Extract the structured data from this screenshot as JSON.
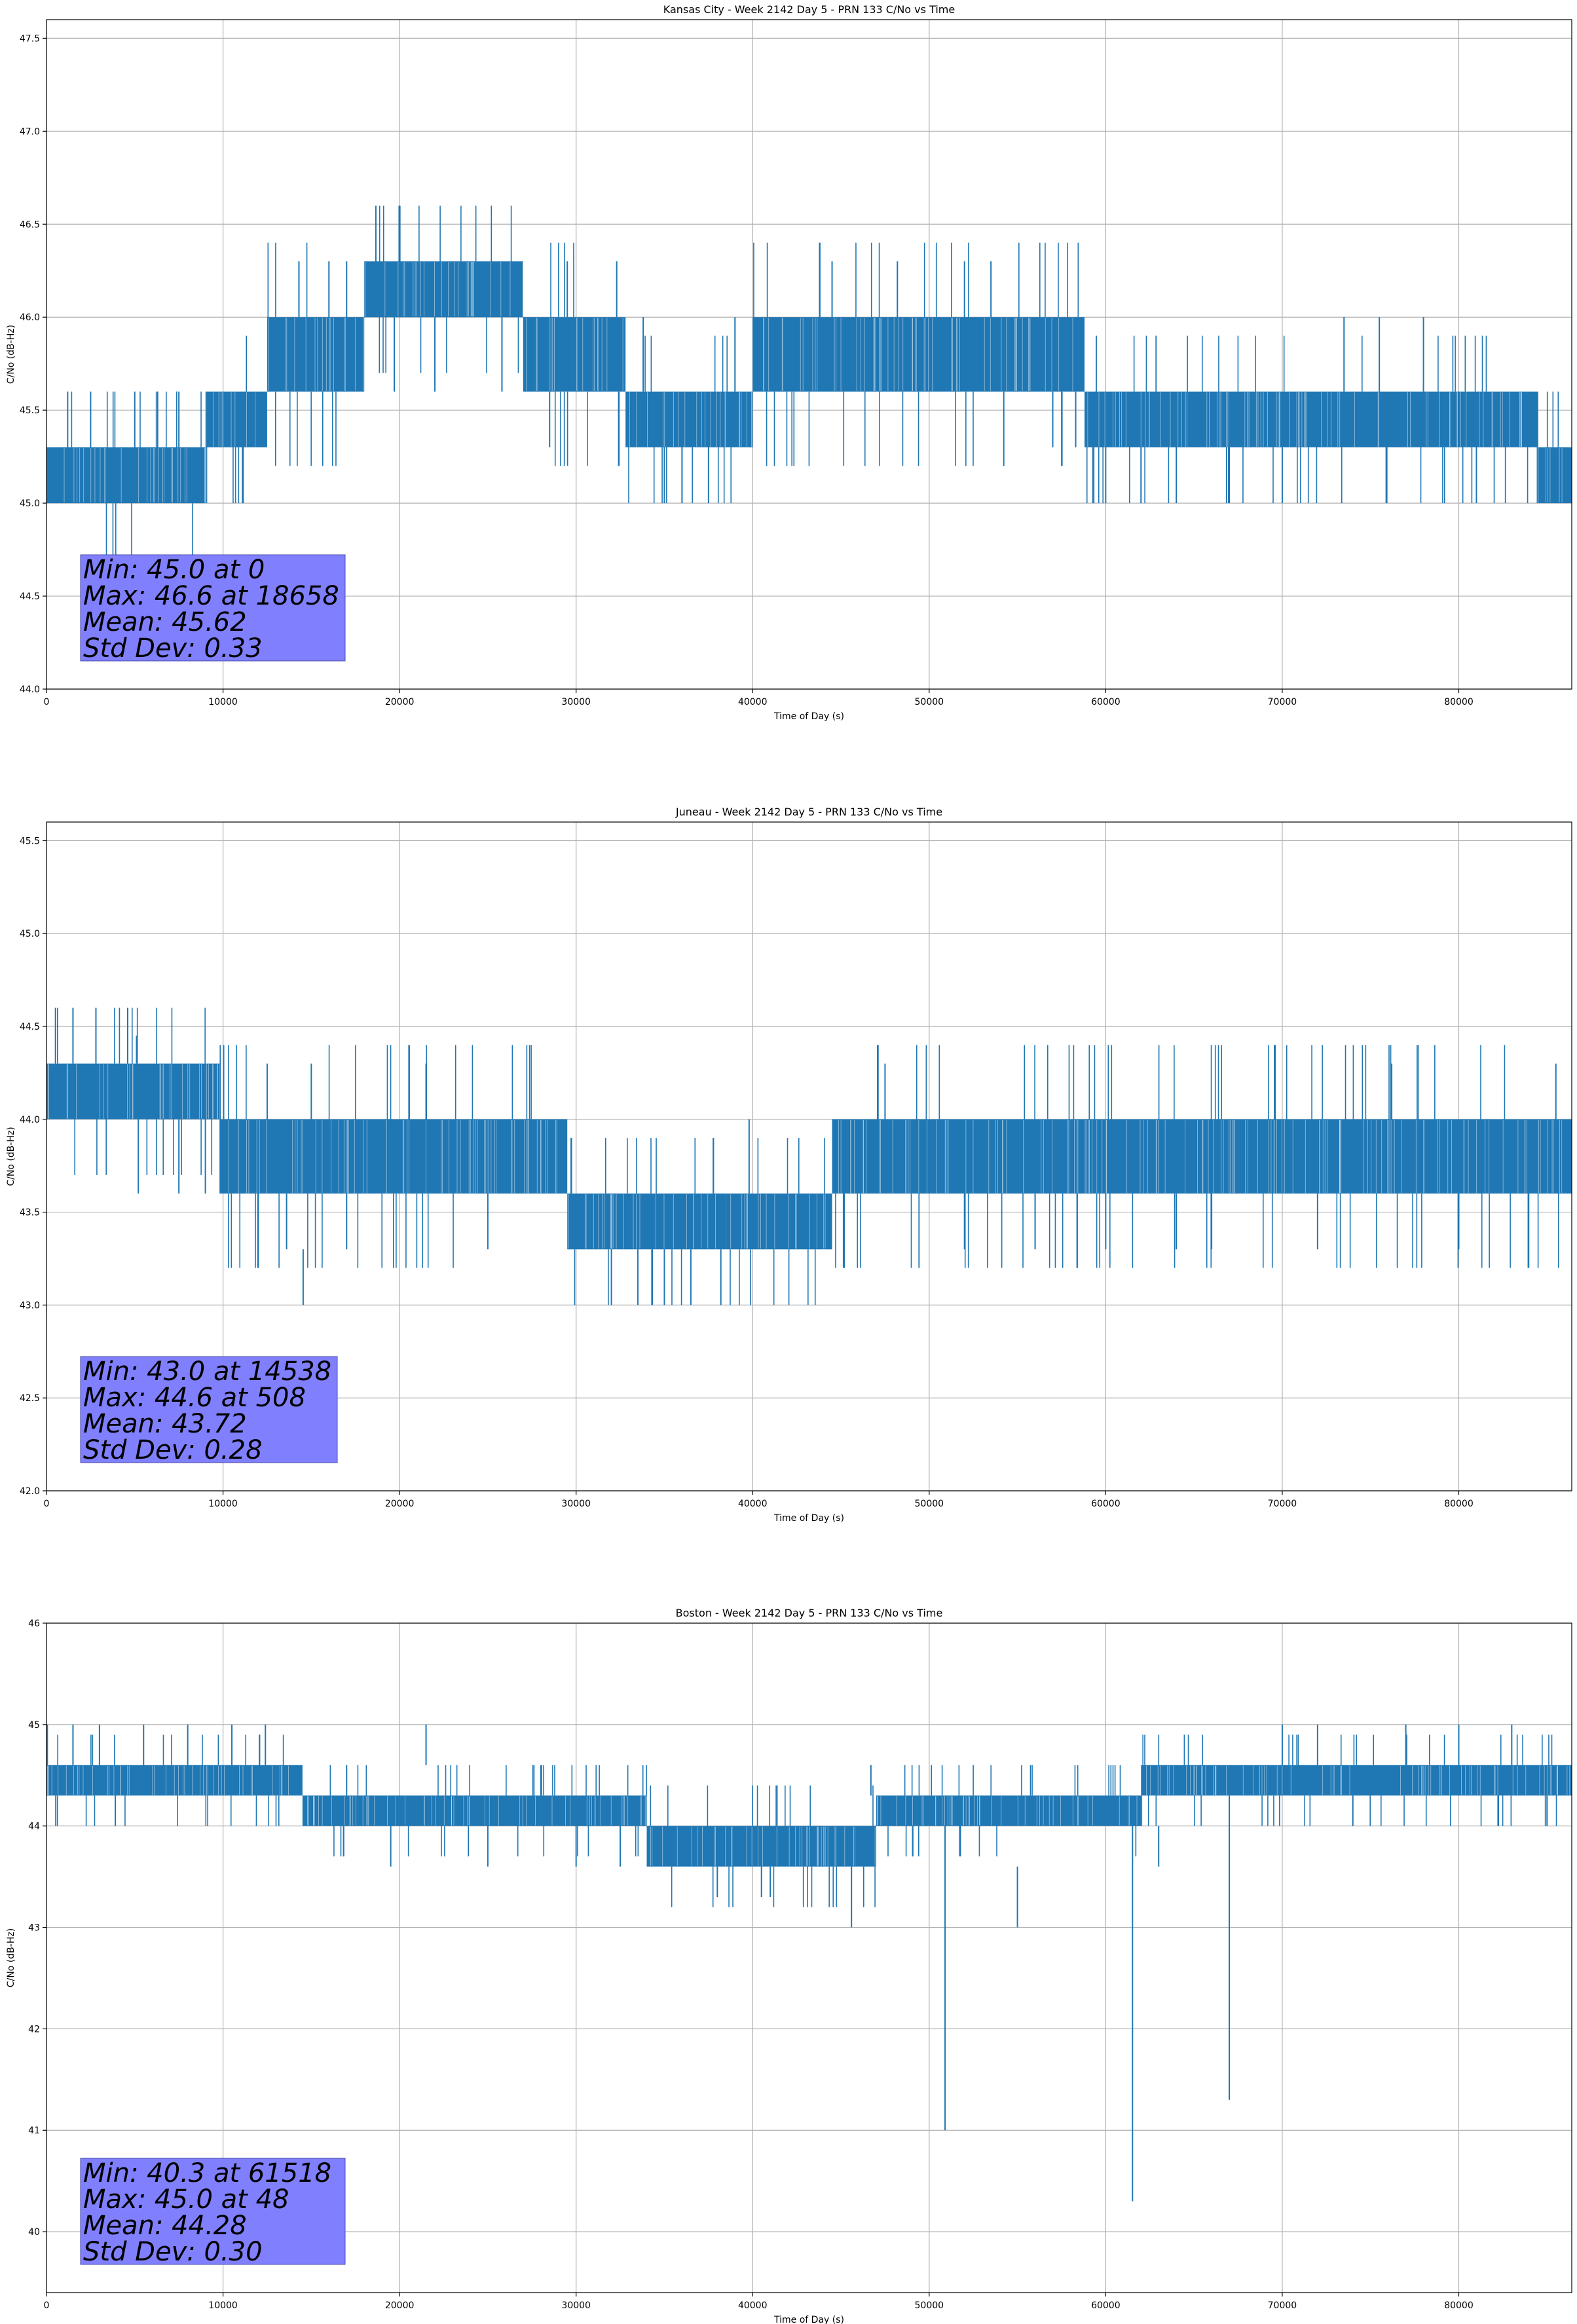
{
  "series_color": "#1f77b4",
  "stats_box_color": "#8080ff",
  "chart_data": [
    {
      "type": "line",
      "title": "Kansas City - Week 2142 Day 5 - PRN 133 C/No vs Time",
      "xlabel": "Time of Day (s)",
      "ylabel": "C/No (dB-Hz)",
      "xlim": [
        0,
        86400
      ],
      "ylim": [
        44.0,
        47.6
      ],
      "xticks": [
        0,
        10000,
        20000,
        30000,
        40000,
        50000,
        60000,
        70000,
        80000
      ],
      "yticks": [
        44.0,
        44.5,
        45.0,
        45.5,
        46.0,
        46.5,
        47.0,
        47.5
      ],
      "ytick_format": 1,
      "grid": true,
      "bands": [
        {
          "x0": 0,
          "x1": 9000,
          "lo": 45.0,
          "hi": 45.3
        },
        {
          "x0": 9000,
          "x1": 12500,
          "lo": 45.3,
          "hi": 45.6
        },
        {
          "x0": 12500,
          "x1": 18000,
          "lo": 45.6,
          "hi": 46.0
        },
        {
          "x0": 18000,
          "x1": 27000,
          "lo": 46.0,
          "hi": 46.3
        },
        {
          "x0": 27000,
          "x1": 32800,
          "lo": 45.6,
          "hi": 46.0
        },
        {
          "x0": 32800,
          "x1": 40000,
          "lo": 45.3,
          "hi": 45.6
        },
        {
          "x0": 40000,
          "x1": 54500,
          "lo": 45.6,
          "hi": 46.0
        },
        {
          "x0": 54500,
          "x1": 58800,
          "lo": 45.6,
          "hi": 46.0
        },
        {
          "x0": 58800,
          "x1": 84500,
          "lo": 45.3,
          "hi": 45.6
        },
        {
          "x0": 84500,
          "x1": 86400,
          "lo": 45.0,
          "hi": 45.3
        }
      ],
      "spikes": [
        {
          "x": 18658,
          "lo": 46.3,
          "hi": 46.6
        },
        {
          "x": 1200,
          "lo": 45.3,
          "hi": 45.6
        },
        {
          "x": 2500,
          "lo": 45.3,
          "hi": 45.6
        },
        {
          "x": 5000,
          "lo": 45.3,
          "hi": 45.6
        },
        {
          "x": 7500,
          "lo": 45.3,
          "hi": 45.6
        },
        {
          "x": 11100,
          "lo": 45.0,
          "hi": 45.3
        },
        {
          "x": 14300,
          "lo": 46.0,
          "hi": 46.3
        },
        {
          "x": 16000,
          "lo": 46.0,
          "hi": 46.3
        },
        {
          "x": 17000,
          "lo": 46.0,
          "hi": 46.3
        },
        {
          "x": 19700,
          "lo": 45.6,
          "hi": 46.0
        },
        {
          "x": 22000,
          "lo": 45.6,
          "hi": 46.0
        },
        {
          "x": 25800,
          "lo": 45.6,
          "hi": 46.0
        },
        {
          "x": 28500,
          "lo": 45.3,
          "hi": 45.6
        },
        {
          "x": 29500,
          "lo": 46.0,
          "hi": 46.3
        },
        {
          "x": 32300,
          "lo": 46.0,
          "hi": 46.3
        },
        {
          "x": 33800,
          "lo": 45.6,
          "hi": 46.0
        },
        {
          "x": 35000,
          "lo": 45.0,
          "hi": 45.3
        },
        {
          "x": 36000,
          "lo": 45.0,
          "hi": 45.3
        },
        {
          "x": 37500,
          "lo": 45.0,
          "hi": 45.3
        },
        {
          "x": 39000,
          "lo": 45.6,
          "hi": 46.0
        },
        {
          "x": 44500,
          "lo": 46.0,
          "hi": 46.3
        },
        {
          "x": 48200,
          "lo": 46.0,
          "hi": 46.3
        },
        {
          "x": 52000,
          "lo": 46.0,
          "hi": 46.3
        },
        {
          "x": 53500,
          "lo": 46.0,
          "hi": 46.3
        },
        {
          "x": 57000,
          "lo": 45.3,
          "hi": 45.6
        },
        {
          "x": 58300,
          "lo": 45.3,
          "hi": 45.6
        },
        {
          "x": 60000,
          "lo": 45.0,
          "hi": 45.3
        },
        {
          "x": 62000,
          "lo": 45.0,
          "hi": 45.3
        },
        {
          "x": 64000,
          "lo": 45.0,
          "hi": 45.3
        },
        {
          "x": 67000,
          "lo": 45.0,
          "hi": 45.3
        },
        {
          "x": 70000,
          "lo": 45.0,
          "hi": 45.3
        },
        {
          "x": 73500,
          "lo": 45.6,
          "hi": 46.0
        },
        {
          "x": 75500,
          "lo": 45.6,
          "hi": 46.0
        },
        {
          "x": 78000,
          "lo": 45.6,
          "hi": 46.0
        },
        {
          "x": 81000,
          "lo": 45.0,
          "hi": 45.3
        }
      ],
      "stats": {
        "min_label": "Min: 45.0 at 0",
        "max_label": "Max: 46.6 at 18658",
        "mean_label": "Mean: 45.62",
        "std_label": "Std Dev: 0.33"
      }
    },
    {
      "type": "line",
      "title": "Juneau - Week 2142 Day 5 - PRN 133 C/No vs Time",
      "xlabel": "Time of Day (s)",
      "ylabel": "C/No (dB-Hz)",
      "xlim": [
        0,
        86400
      ],
      "ylim": [
        42.0,
        45.6
      ],
      "xticks": [
        0,
        10000,
        20000,
        30000,
        40000,
        50000,
        60000,
        70000,
        80000
      ],
      "yticks": [
        42.0,
        42.5,
        43.0,
        43.5,
        44.0,
        44.5,
        45.0,
        45.5
      ],
      "ytick_format": 1,
      "grid": true,
      "bands": [
        {
          "x0": 0,
          "x1": 9800,
          "lo": 44.0,
          "hi": 44.3
        },
        {
          "x0": 9800,
          "x1": 29500,
          "lo": 43.6,
          "hi": 44.0
        },
        {
          "x0": 29500,
          "x1": 31500,
          "lo": 43.3,
          "hi": 43.6
        },
        {
          "x0": 31500,
          "x1": 38500,
          "lo": 43.3,
          "hi": 43.6
        },
        {
          "x0": 38500,
          "x1": 44500,
          "lo": 43.3,
          "hi": 43.6
        },
        {
          "x0": 44500,
          "x1": 68000,
          "lo": 43.6,
          "hi": 44.0
        },
        {
          "x0": 68000,
          "x1": 86400,
          "lo": 43.6,
          "hi": 44.0
        }
      ],
      "spikes": [
        {
          "x": 508,
          "lo": 44.3,
          "hi": 44.6
        },
        {
          "x": 1500,
          "lo": 44.3,
          "hi": 44.6
        },
        {
          "x": 2800,
          "lo": 44.3,
          "hi": 44.6
        },
        {
          "x": 4600,
          "lo": 44.3,
          "hi": 44.6
        },
        {
          "x": 5100,
          "lo": 44.3,
          "hi": 44.45
        },
        {
          "x": 5200,
          "lo": 43.6,
          "hi": 44.0
        },
        {
          "x": 7500,
          "lo": 43.6,
          "hi": 44.0
        },
        {
          "x": 9000,
          "lo": 43.6,
          "hi": 44.0
        },
        {
          "x": 12500,
          "lo": 44.0,
          "hi": 44.3
        },
        {
          "x": 13600,
          "lo": 43.3,
          "hi": 43.6
        },
        {
          "x": 14538,
          "lo": 43.0,
          "hi": 43.3
        },
        {
          "x": 15000,
          "lo": 44.0,
          "hi": 44.3
        },
        {
          "x": 17000,
          "lo": 43.3,
          "hi": 43.6
        },
        {
          "x": 21500,
          "lo": 44.0,
          "hi": 44.3
        },
        {
          "x": 25000,
          "lo": 43.3,
          "hi": 43.6
        },
        {
          "x": 32000,
          "lo": 43.0,
          "hi": 43.3
        },
        {
          "x": 33500,
          "lo": 43.0,
          "hi": 43.3
        },
        {
          "x": 35000,
          "lo": 43.0,
          "hi": 43.3
        },
        {
          "x": 36500,
          "lo": 43.0,
          "hi": 43.3
        },
        {
          "x": 38200,
          "lo": 43.0,
          "hi": 43.3
        },
        {
          "x": 39800,
          "lo": 43.6,
          "hi": 44.0
        },
        {
          "x": 47500,
          "lo": 44.0,
          "hi": 44.3
        },
        {
          "x": 52000,
          "lo": 43.3,
          "hi": 43.6
        },
        {
          "x": 56000,
          "lo": 43.3,
          "hi": 43.6
        },
        {
          "x": 60000,
          "lo": 43.3,
          "hi": 43.6
        },
        {
          "x": 64000,
          "lo": 43.3,
          "hi": 43.6
        },
        {
          "x": 66000,
          "lo": 43.3,
          "hi": 43.6
        },
        {
          "x": 72000,
          "lo": 43.3,
          "hi": 43.6
        },
        {
          "x": 76200,
          "lo": 44.0,
          "hi": 44.3
        },
        {
          "x": 80000,
          "lo": 43.3,
          "hi": 43.6
        },
        {
          "x": 85500,
          "lo": 44.0,
          "hi": 44.3
        }
      ],
      "stats": {
        "min_label": "Min: 43.0 at 14538",
        "max_label": "Max: 44.6 at 508",
        "mean_label": "Mean: 43.72",
        "std_label": "Std Dev: 0.28"
      }
    },
    {
      "type": "line",
      "title": "Boston - Week 2142 Day 5 - PRN 133 C/No vs Time",
      "xlabel": "Time of Day (s)",
      "ylabel": "C/No (dB-Hz)",
      "xlim": [
        0,
        86400
      ],
      "ylim": [
        39.4,
        46.0
      ],
      "xticks": [
        0,
        10000,
        20000,
        30000,
        40000,
        50000,
        60000,
        70000,
        80000
      ],
      "yticks": [
        40,
        41,
        42,
        43,
        44,
        45,
        46
      ],
      "ytick_format": 0,
      "grid": true,
      "bands": [
        {
          "x0": 0,
          "x1": 14500,
          "lo": 44.3,
          "hi": 44.6
        },
        {
          "x0": 14500,
          "x1": 34000,
          "lo": 44.0,
          "hi": 44.3
        },
        {
          "x0": 34000,
          "x1": 47000,
          "lo": 43.6,
          "hi": 44.0
        },
        {
          "x0": 47000,
          "x1": 62000,
          "lo": 44.0,
          "hi": 44.3
        },
        {
          "x0": 62000,
          "x1": 86400,
          "lo": 44.3,
          "hi": 44.6
        }
      ],
      "spikes": [
        {
          "x": 48,
          "lo": 44.6,
          "hi": 45.0
        },
        {
          "x": 1500,
          "lo": 44.6,
          "hi": 45.0
        },
        {
          "x": 3000,
          "lo": 44.6,
          "hi": 45.0
        },
        {
          "x": 3900,
          "lo": 44.0,
          "hi": 44.3
        },
        {
          "x": 5500,
          "lo": 44.6,
          "hi": 45.0
        },
        {
          "x": 8000,
          "lo": 44.6,
          "hi": 45.0
        },
        {
          "x": 10500,
          "lo": 44.6,
          "hi": 45.0
        },
        {
          "x": 12400,
          "lo": 44.6,
          "hi": 45.0
        },
        {
          "x": 17000,
          "lo": 44.3,
          "hi": 44.6
        },
        {
          "x": 19500,
          "lo": 43.6,
          "hi": 44.0
        },
        {
          "x": 21500,
          "lo": 44.6,
          "hi": 45.0
        },
        {
          "x": 25000,
          "lo": 43.6,
          "hi": 44.0
        },
        {
          "x": 30000,
          "lo": 43.6,
          "hi": 44.0
        },
        {
          "x": 32500,
          "lo": 43.6,
          "hi": 44.0
        },
        {
          "x": 38000,
          "lo": 43.3,
          "hi": 43.6
        },
        {
          "x": 40500,
          "lo": 43.3,
          "hi": 43.6
        },
        {
          "x": 41000,
          "lo": 43.3,
          "hi": 43.6
        },
        {
          "x": 45600,
          "lo": 43.0,
          "hi": 43.6
        },
        {
          "x": 46700,
          "lo": 44.3,
          "hi": 44.6
        },
        {
          "x": 50900,
          "lo": 41.0,
          "hi": 44.0
        },
        {
          "x": 55000,
          "lo": 43.0,
          "hi": 43.6
        },
        {
          "x": 61518,
          "lo": 40.3,
          "hi": 44.0
        },
        {
          "x": 63000,
          "lo": 43.6,
          "hi": 44.0
        },
        {
          "x": 67000,
          "lo": 41.3,
          "hi": 44.3
        },
        {
          "x": 70000,
          "lo": 44.6,
          "hi": 45.0
        },
        {
          "x": 72000,
          "lo": 44.6,
          "hi": 45.0
        },
        {
          "x": 74000,
          "lo": 44.0,
          "hi": 44.3
        },
        {
          "x": 77000,
          "lo": 44.6,
          "hi": 45.0
        },
        {
          "x": 80000,
          "lo": 44.6,
          "hi": 45.0
        },
        {
          "x": 83000,
          "lo": 44.6,
          "hi": 45.0
        },
        {
          "x": 85000,
          "lo": 44.0,
          "hi": 44.3
        }
      ],
      "stats": {
        "min_label": "Min: 40.3 at 61518",
        "max_label": "Max: 45.0 at 48",
        "mean_label": "Mean: 44.28",
        "std_label": "Std Dev: 0.30"
      }
    }
  ]
}
